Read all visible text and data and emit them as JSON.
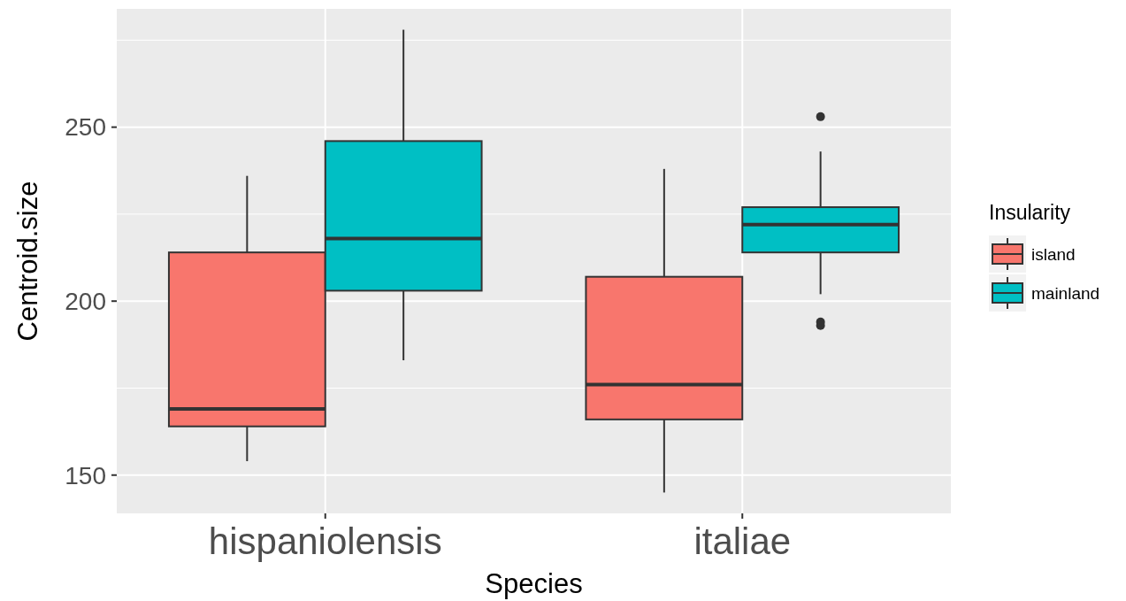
{
  "chart_data": {
    "type": "box",
    "xlabel": "Species",
    "ylabel": "Centroid.size",
    "legend_title": "Insularity",
    "legend": "right",
    "grid": true,
    "categories": [
      "hispaniolensis",
      "italiae"
    ],
    "ylim": [
      139,
      284
    ],
    "yticks": [
      150,
      200,
      250
    ],
    "series": [
      {
        "name": "island",
        "color": "#f8766d",
        "boxes": [
          {
            "low": 154,
            "q1": 164,
            "median": 169,
            "q3": 214,
            "high": 236
          },
          {
            "low": 145,
            "q1": 166,
            "median": 176,
            "q3": 207,
            "high": 238
          }
        ]
      },
      {
        "name": "mainland",
        "color": "#00bfc4",
        "boxes": [
          {
            "low": 183,
            "q1": 203,
            "median": 218,
            "q3": 246,
            "high": 278
          },
          {
            "low": 202,
            "q1": 214,
            "median": 222,
            "q3": 227,
            "high": 243,
            "outliers": [
              253,
              194,
              193
            ]
          }
        ]
      }
    ]
  }
}
